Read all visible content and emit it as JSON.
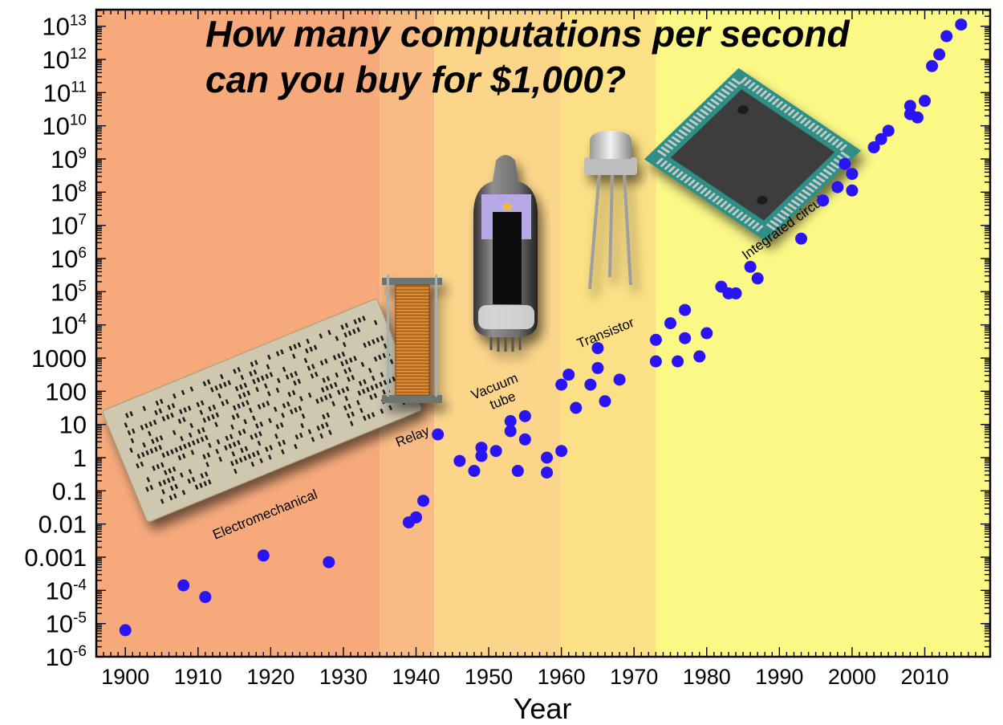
{
  "chart_data": {
    "type": "scatter",
    "title": [
      "How many computations per second",
      "can you buy for $1,000?"
    ],
    "xlabel": "Year",
    "ylabel": "",
    "xlim": [
      1896,
      1920
    ],
    "x_range": [
      1896,
      2019
    ],
    "ylim_log10": [
      -6,
      13.5
    ],
    "y_scale": "log",
    "x_ticks": [
      1900,
      1910,
      1920,
      1930,
      1940,
      1950,
      1960,
      1970,
      1980,
      1990,
      2000,
      2010
    ],
    "y_ticks": [
      {
        "exp": -6,
        "label": "10",
        "sup": "-6"
      },
      {
        "exp": -5,
        "label": "10",
        "sup": "-5"
      },
      {
        "exp": -4,
        "label": "10",
        "sup": "-4"
      },
      {
        "exp": -3,
        "label": "0.001",
        "sup": ""
      },
      {
        "exp": -2,
        "label": "0.01",
        "sup": ""
      },
      {
        "exp": -1,
        "label": "0.1",
        "sup": ""
      },
      {
        "exp": 0,
        "label": "1",
        "sup": ""
      },
      {
        "exp": 1,
        "label": "10",
        "sup": ""
      },
      {
        "exp": 2,
        "label": "100",
        "sup": ""
      },
      {
        "exp": 3,
        "label": "1000",
        "sup": ""
      },
      {
        "exp": 4,
        "label": "10",
        "sup": "4"
      },
      {
        "exp": 5,
        "label": "10",
        "sup": "5"
      },
      {
        "exp": 6,
        "label": "10",
        "sup": "6"
      },
      {
        "exp": 7,
        "label": "10",
        "sup": "7"
      },
      {
        "exp": 8,
        "label": "10",
        "sup": "8"
      },
      {
        "exp": 9,
        "label": "10",
        "sup": "9"
      },
      {
        "exp": 10,
        "label": "10",
        "sup": "10"
      },
      {
        "exp": 11,
        "label": "10",
        "sup": "11"
      },
      {
        "exp": 12,
        "label": "10",
        "sup": "12"
      },
      {
        "exp": 13,
        "label": "10",
        "sup": "13"
      }
    ],
    "eras": [
      {
        "label": "Electromechanical",
        "start": 1896,
        "end": 1935,
        "color": "#f6aa7c"
      },
      {
        "label": "Relay",
        "start": 1935,
        "end": 1942.5,
        "color": "#f9bb84"
      },
      {
        "label": "Vacuum tube",
        "start": 1942.5,
        "end": 1960,
        "color": "#fbd58a"
      },
      {
        "label": "Transistor",
        "start": 1960,
        "end": 1973,
        "color": "#fce085"
      },
      {
        "label": "Integrated circuit",
        "start": 1973,
        "end": 2019,
        "color": "#fbf886"
      }
    ],
    "points_log10": [
      [
        1900,
        -5.2
      ],
      [
        1908,
        -3.85
      ],
      [
        1911,
        -4.2
      ],
      [
        1919,
        -2.95
      ],
      [
        1928,
        -3.15
      ],
      [
        1939,
        -1.95
      ],
      [
        1940,
        -1.8
      ],
      [
        1941,
        -1.3
      ],
      [
        1943,
        0.7
      ],
      [
        1946,
        -0.1
      ],
      [
        1948,
        -0.4
      ],
      [
        1949,
        0.05
      ],
      [
        1949,
        0.3
      ],
      [
        1951,
        0.2
      ],
      [
        1953,
        0.8
      ],
      [
        1953,
        1.1
      ],
      [
        1954,
        -0.4
      ],
      [
        1955,
        0.55
      ],
      [
        1955,
        1.25
      ],
      [
        1958,
        0.0
      ],
      [
        1958,
        -0.45
      ],
      [
        1960,
        0.2
      ],
      [
        1960,
        2.2
      ],
      [
        1961,
        2.5
      ],
      [
        1962,
        1.5
      ],
      [
        1964,
        2.2
      ],
      [
        1965,
        2.7
      ],
      [
        1965,
        3.3
      ],
      [
        1966,
        1.7
      ],
      [
        1968,
        2.35
      ],
      [
        1973,
        3.55
      ],
      [
        1973,
        2.9
      ],
      [
        1975,
        4.05
      ],
      [
        1976,
        2.9
      ],
      [
        1977,
        3.6
      ],
      [
        1977,
        4.45
      ],
      [
        1979,
        3.05
      ],
      [
        1980,
        3.75
      ],
      [
        1982,
        5.15
      ],
      [
        1983,
        4.95
      ],
      [
        1984,
        4.95
      ],
      [
        1986,
        5.75
      ],
      [
        1987,
        5.4
      ],
      [
        1993,
        6.6
      ],
      [
        1996,
        7.75
      ],
      [
        1998,
        8.15
      ],
      [
        1999,
        8.85
      ],
      [
        2000,
        8.55
      ],
      [
        2000,
        8.05
      ],
      [
        2003,
        9.35
      ],
      [
        2004,
        9.6
      ],
      [
        2005,
        9.85
      ],
      [
        2008,
        10.6
      ],
      [
        2008,
        10.35
      ],
      [
        2009,
        10.25
      ],
      [
        2010,
        10.75
      ],
      [
        2011,
        11.8
      ],
      [
        2012,
        12.15
      ],
      [
        2013,
        12.7
      ],
      [
        2015,
        13.05
      ]
    ]
  }
}
